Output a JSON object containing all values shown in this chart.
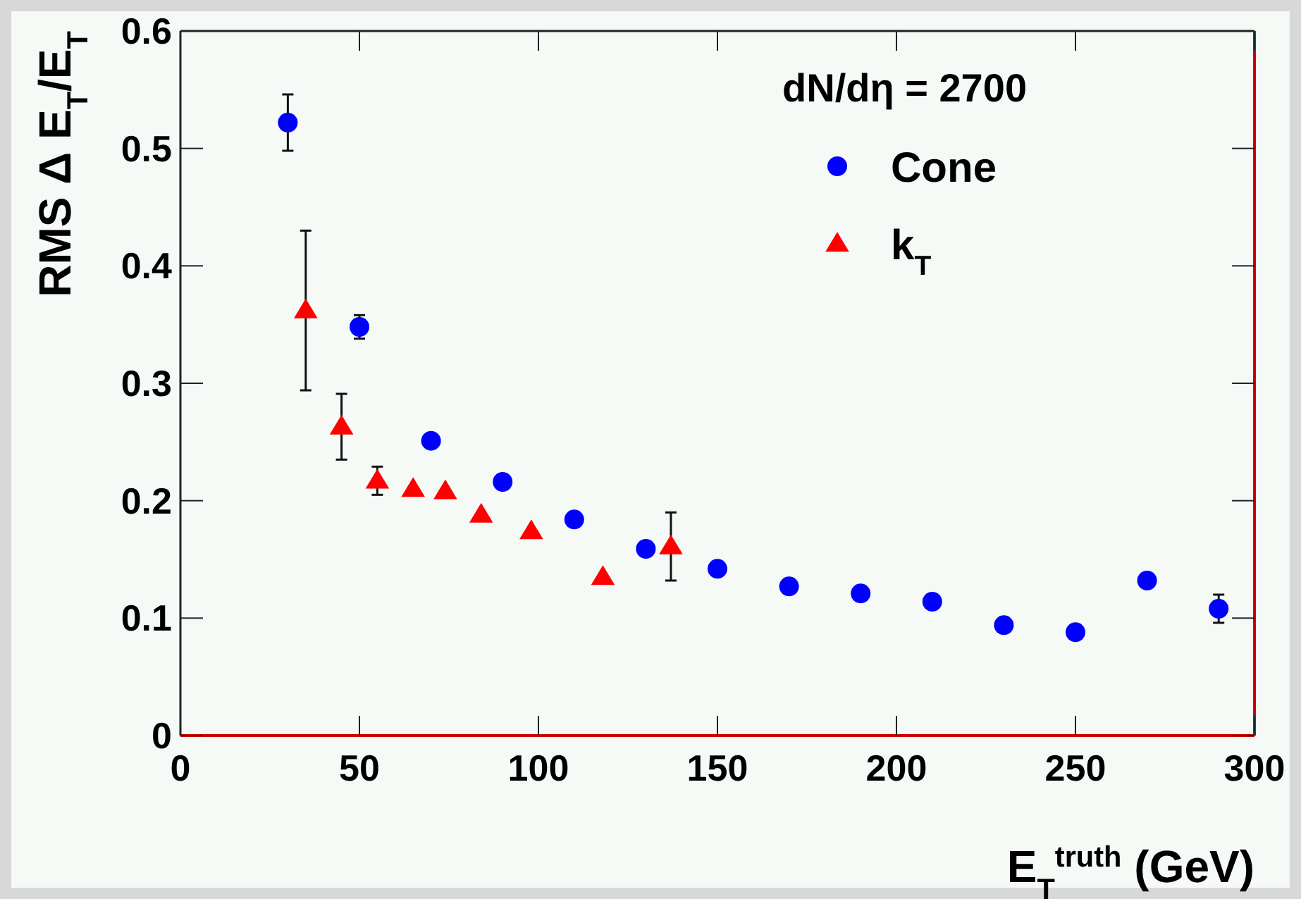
{
  "chart_data": {
    "type": "scatter",
    "xlabel": "E$_{T}$$^{truth}$ (GeV)",
    "ylabel": "RMS Δ E$_{T}$/E$_{T}$",
    "legend_title": "dN/dη = 2700",
    "xlim": [
      0,
      300
    ],
    "xticks": [
      0,
      50,
      100,
      150,
      200,
      250,
      300
    ],
    "ylim": [
      0,
      0.6
    ],
    "yticks": [
      0,
      0.1,
      0.2,
      0.3,
      0.4,
      0.5,
      0.6
    ],
    "grid": false,
    "legend": "top right",
    "series": [
      {
        "name": "Cone",
        "color": "#0000ff",
        "marker": "circle",
        "x": [
          30,
          50,
          70,
          90,
          110,
          130,
          150,
          170,
          190,
          210,
          230,
          250,
          270,
          290
        ],
        "values": [
          0.522,
          0.348,
          0.251,
          0.216,
          0.184,
          0.159,
          0.142,
          0.127,
          0.121,
          0.114,
          0.094,
          0.088,
          0.132,
          0.108
        ],
        "errors": [
          0.024,
          0.01,
          null,
          null,
          null,
          null,
          null,
          null,
          null,
          null,
          null,
          null,
          null,
          0.012
        ]
      },
      {
        "name": "k$_{T}$",
        "color": "#ff0000",
        "marker": "triangle",
        "x": [
          35,
          45,
          55,
          65,
          74,
          84,
          98,
          118,
          137
        ],
        "values": [
          0.362,
          0.263,
          0.217,
          0.21,
          0.208,
          0.188,
          0.174,
          0.135,
          0.161
        ],
        "errors": [
          0.068,
          0.028,
          0.012,
          null,
          null,
          null,
          null,
          null,
          0.029
        ]
      }
    ]
  }
}
